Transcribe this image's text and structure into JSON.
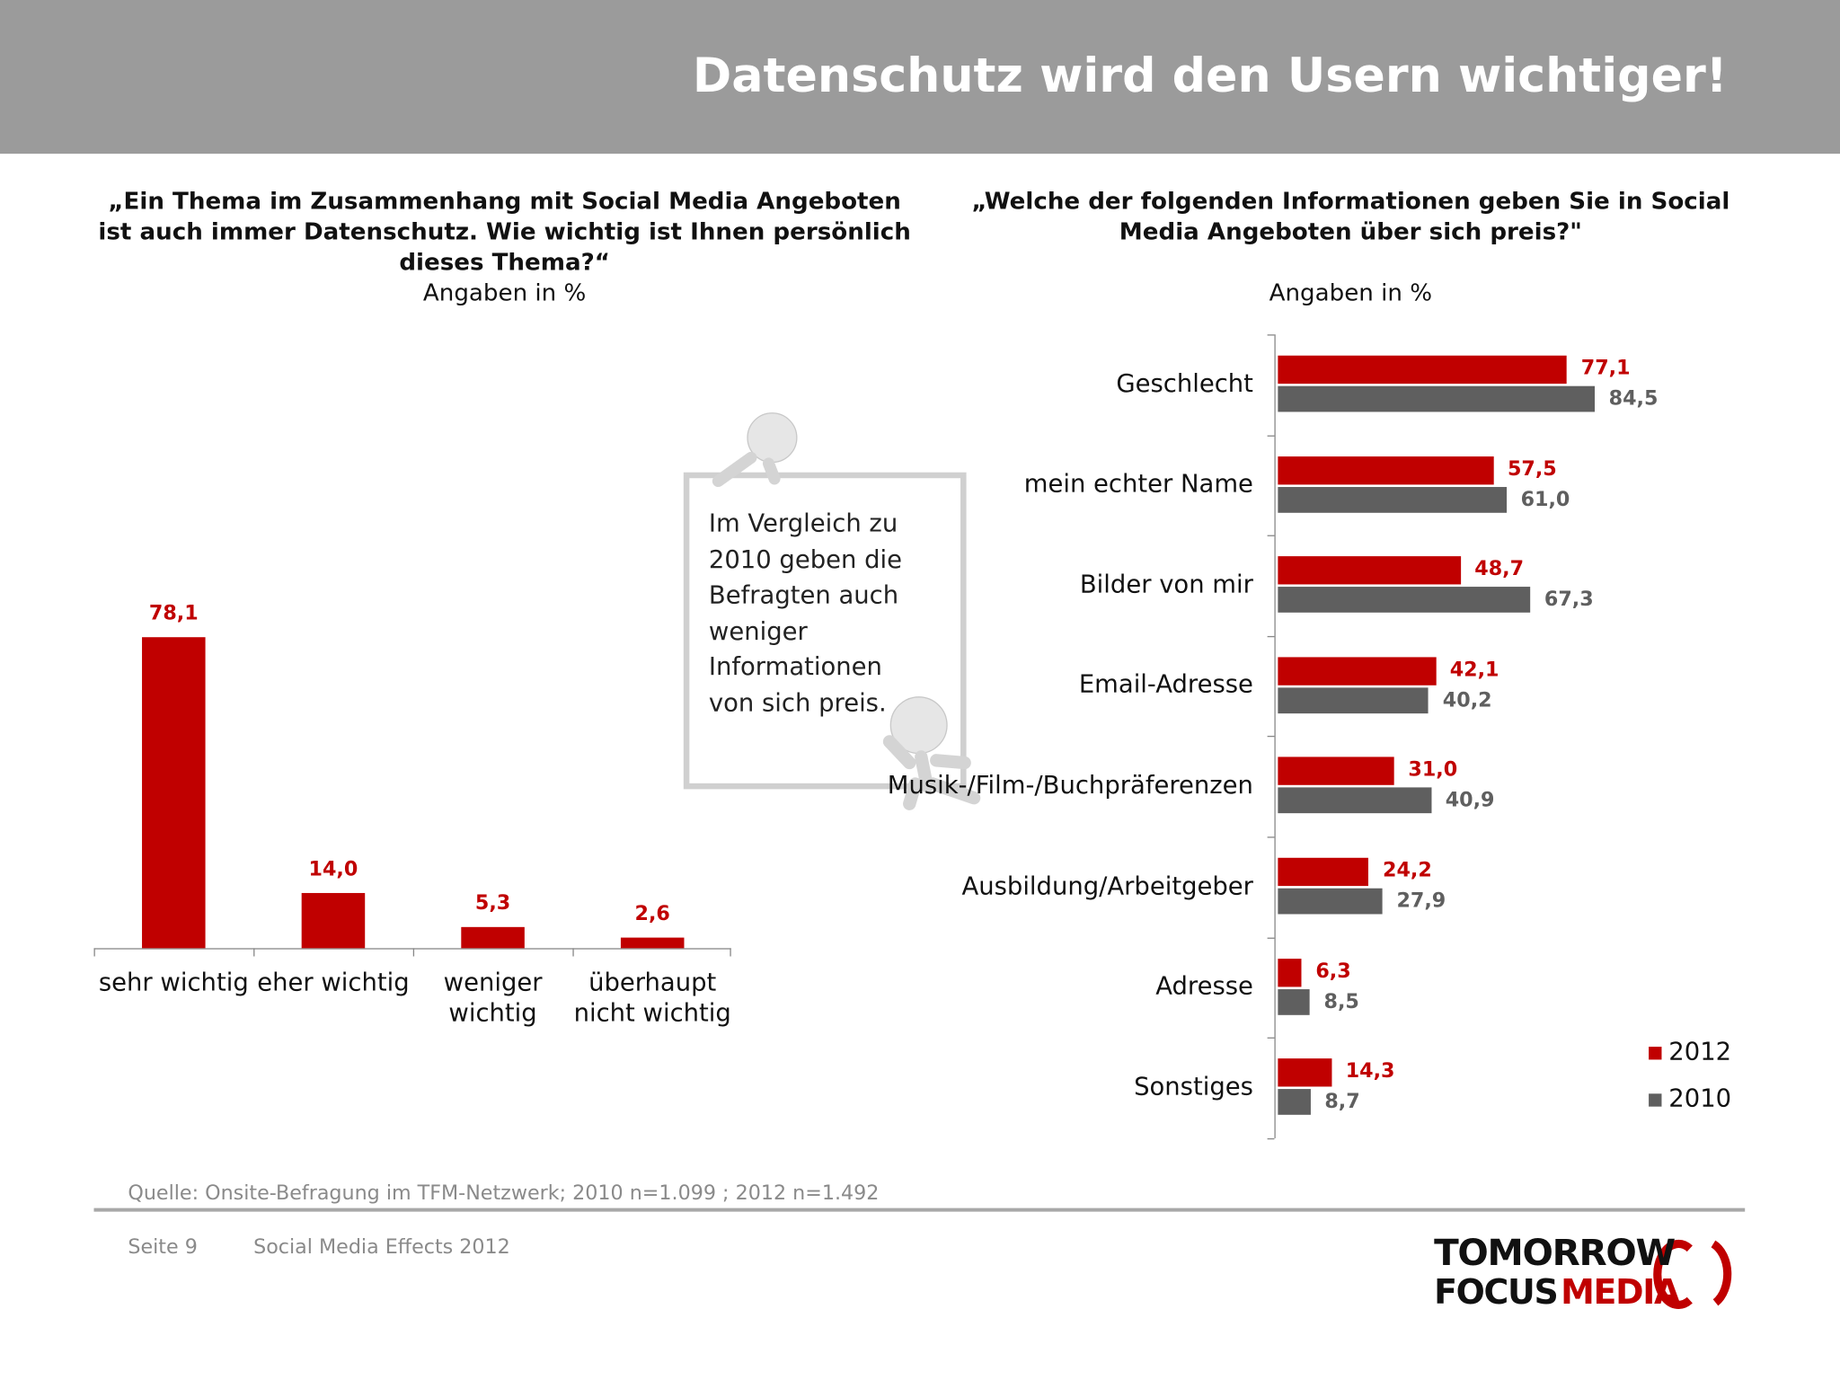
{
  "header": {
    "title": "Datenschutz wird den Usern wichtiger!"
  },
  "chart_data": [
    {
      "type": "bar",
      "title": "„Ein Thema im Zusammenhang mit Social Media Angeboten ist auch immer Datenschutz. Wie wichtig ist Ihnen persönlich dieses Thema?“",
      "subtitle": "Angaben in %",
      "categories": [
        "sehr wichtig",
        "eher wichtig",
        "weniger wichtig",
        "überhaupt nicht wichtig"
      ],
      "values": [
        78.1,
        14.0,
        5.3,
        2.6
      ],
      "value_labels": [
        "78,1",
        "14,0",
        "5,3",
        "2,6"
      ],
      "color": "#c00000"
    },
    {
      "type": "hbar",
      "title": "„Welche der folgenden Informationen geben Sie in Social Media Angeboten über sich preis?\"",
      "subtitle": "Angaben in %",
      "categories": [
        "Geschlecht",
        "mein echter Name",
        "Bilder von mir",
        "Email-Adresse",
        "Musik-/Film-/Buchpräferenzen",
        "Ausbildung/Arbeitgeber",
        "Adresse",
        "Sonstiges"
      ],
      "series": [
        {
          "name": "2012",
          "color": "#c00000",
          "values": [
            77.1,
            57.5,
            48.7,
            42.1,
            31.0,
            24.2,
            6.3,
            14.3
          ],
          "value_labels": [
            "77,1",
            "57,5",
            "48,7",
            "42,1",
            "31,0",
            "24,2",
            "6,3",
            "14,3"
          ]
        },
        {
          "name": "2010",
          "color": "#5f5f5f",
          "values": [
            84.5,
            61.0,
            67.3,
            40.2,
            40.9,
            27.9,
            8.5,
            8.7
          ],
          "value_labels": [
            "84,5",
            "61,0",
            "67,3",
            "40,2",
            "40,9",
            "27,9",
            "8,5",
            "8,7"
          ]
        }
      ],
      "legend": "lower right"
    }
  ],
  "callout": {
    "text": "Im Vergleich zu 2010 geben die Befragten auch weniger Informationen von sich preis."
  },
  "footer": {
    "source": "Quelle: Onsite-Befragung im TFM-Netzwerk; 2010 n=1.099 ; 2012 n=1.492",
    "page": "Seite 9",
    "event": "Social Media Effects 2012"
  },
  "logo": {
    "line1": "TOMORROW",
    "focus": "FOCUS",
    "media": "MEDIA"
  }
}
